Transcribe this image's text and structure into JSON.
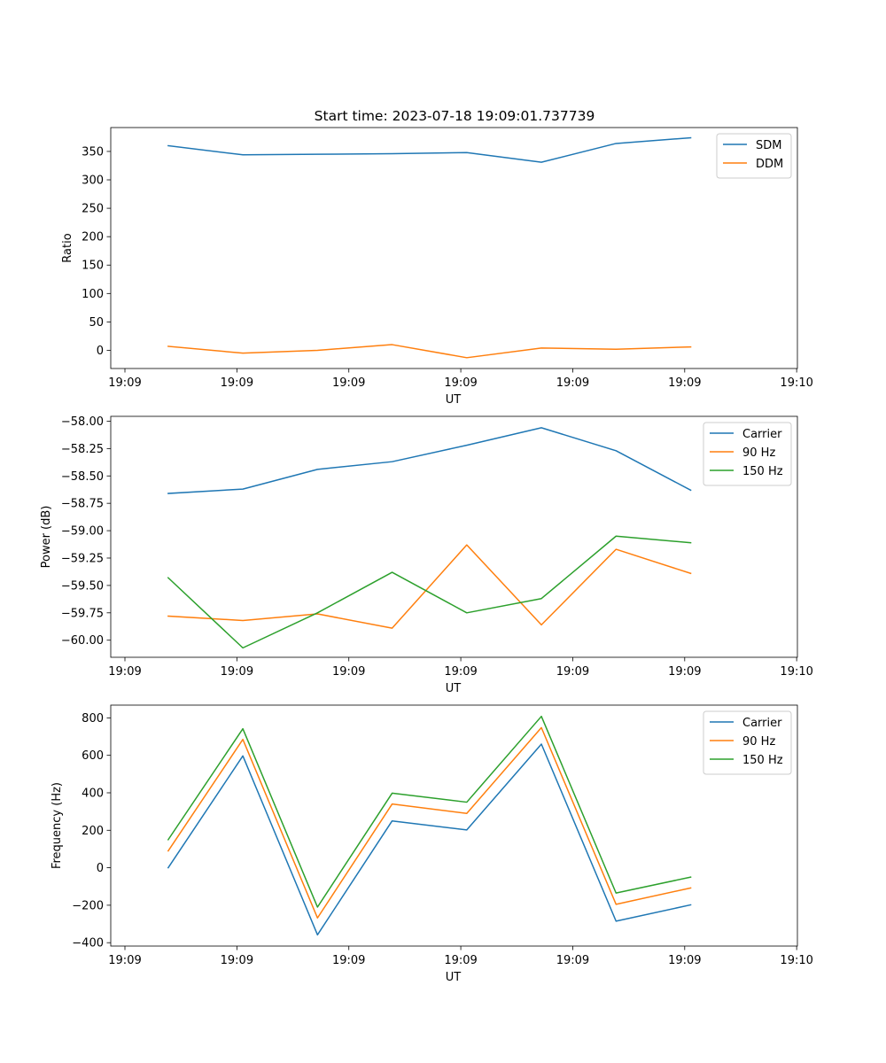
{
  "title": "Start time: 2023-07-18 19:09:01.737739",
  "colors": {
    "blue": "#1f77b4",
    "orange": "#ff7f0e",
    "green": "#2ca02c"
  },
  "chart_data": [
    {
      "type": "line",
      "title": "Start time: 2023-07-18 19:09:01.737739",
      "xlabel": "UT",
      "ylabel": "Ratio",
      "x": [
        1,
        2,
        3,
        4,
        5,
        6,
        7,
        8
      ],
      "xlim": [
        0.23,
        9.43
      ],
      "xticks": [
        0.42,
        1.92,
        3.42,
        4.92,
        6.42,
        7.92,
        9.42
      ],
      "xtick_labels": [
        "19:09",
        "19:09",
        "19:09",
        "19:09",
        "19:09",
        "19:09",
        "19:10"
      ],
      "ylim": [
        -32,
        392
      ],
      "yticks": [
        0,
        50,
        100,
        150,
        200,
        250,
        300,
        350
      ],
      "ytick_labels": [
        "0",
        "50",
        "100",
        "150",
        "200",
        "250",
        "300",
        "350"
      ],
      "legend_loc": "top-right",
      "series": [
        {
          "name": "SDM",
          "color": "#1f77b4",
          "values": [
            360,
            344,
            345,
            346,
            348,
            331,
            364,
            374
          ]
        },
        {
          "name": "DDM",
          "color": "#ff7f0e",
          "values": [
            7,
            -5,
            0,
            10,
            -13,
            4,
            2,
            6
          ]
        }
      ]
    },
    {
      "type": "line",
      "xlabel": "UT",
      "ylabel": "Power (dB)",
      "x": [
        1,
        2,
        3,
        4,
        5,
        6,
        7,
        8
      ],
      "xlim": [
        0.23,
        9.43
      ],
      "xticks": [
        0.42,
        1.92,
        3.42,
        4.92,
        6.42,
        7.92,
        9.42
      ],
      "xtick_labels": [
        "19:09",
        "19:09",
        "19:09",
        "19:09",
        "19:09",
        "19:09",
        "19:10"
      ],
      "ylim": [
        -60.156,
        -57.956
      ],
      "yticks": [
        -60.0,
        -59.75,
        -59.5,
        -59.25,
        -59.0,
        -58.75,
        -58.5,
        -58.25,
        -58.0
      ],
      "ytick_labels": [
        "−60.00",
        "−59.75",
        "−59.50",
        "−59.25",
        "−59.00",
        "−58.75",
        "−58.50",
        "−58.25",
        "−58.00"
      ],
      "legend_loc": "top-right",
      "series": [
        {
          "name": "Carrier",
          "color": "#1f77b4",
          "values": [
            -58.66,
            -58.62,
            -58.44,
            -58.37,
            -58.22,
            -58.06,
            -58.27,
            -58.63
          ]
        },
        {
          "name": "90 Hz",
          "color": "#ff7f0e",
          "values": [
            -59.78,
            -59.82,
            -59.76,
            -59.89,
            -59.13,
            -59.86,
            -59.17,
            -59.39
          ]
        },
        {
          "name": "150 Hz",
          "color": "#2ca02c",
          "values": [
            -59.43,
            -60.07,
            -59.75,
            -59.38,
            -59.75,
            -59.62,
            -59.05,
            -59.11
          ]
        }
      ]
    },
    {
      "type": "line",
      "xlabel": "UT",
      "ylabel": "Frequency (Hz)",
      "x": [
        1,
        2,
        3,
        4,
        5,
        6,
        7,
        8
      ],
      "xlim": [
        0.23,
        9.43
      ],
      "xticks": [
        0.42,
        1.92,
        3.42,
        4.92,
        6.42,
        7.92,
        9.42
      ],
      "xtick_labels": [
        "19:09",
        "19:09",
        "19:09",
        "19:09",
        "19:09",
        "19:09",
        "19:10"
      ],
      "ylim": [
        -418,
        868
      ],
      "yticks": [
        -400,
        -200,
        0,
        200,
        400,
        600,
        800
      ],
      "ytick_labels": [
        "−400",
        "−200",
        "0",
        "200",
        "400",
        "600",
        "800"
      ],
      "legend_loc": "top-right",
      "series": [
        {
          "name": "Carrier",
          "color": "#1f77b4",
          "values": [
            0,
            597,
            -358,
            250,
            202,
            660,
            -285,
            -198
          ]
        },
        {
          "name": "90 Hz",
          "color": "#ff7f0e",
          "values": [
            90,
            685,
            -268,
            340,
            290,
            748,
            -195,
            -108
          ]
        },
        {
          "name": "150 Hz",
          "color": "#2ca02c",
          "values": [
            150,
            742,
            -210,
            398,
            350,
            808,
            -135,
            -50
          ]
        }
      ]
    }
  ]
}
